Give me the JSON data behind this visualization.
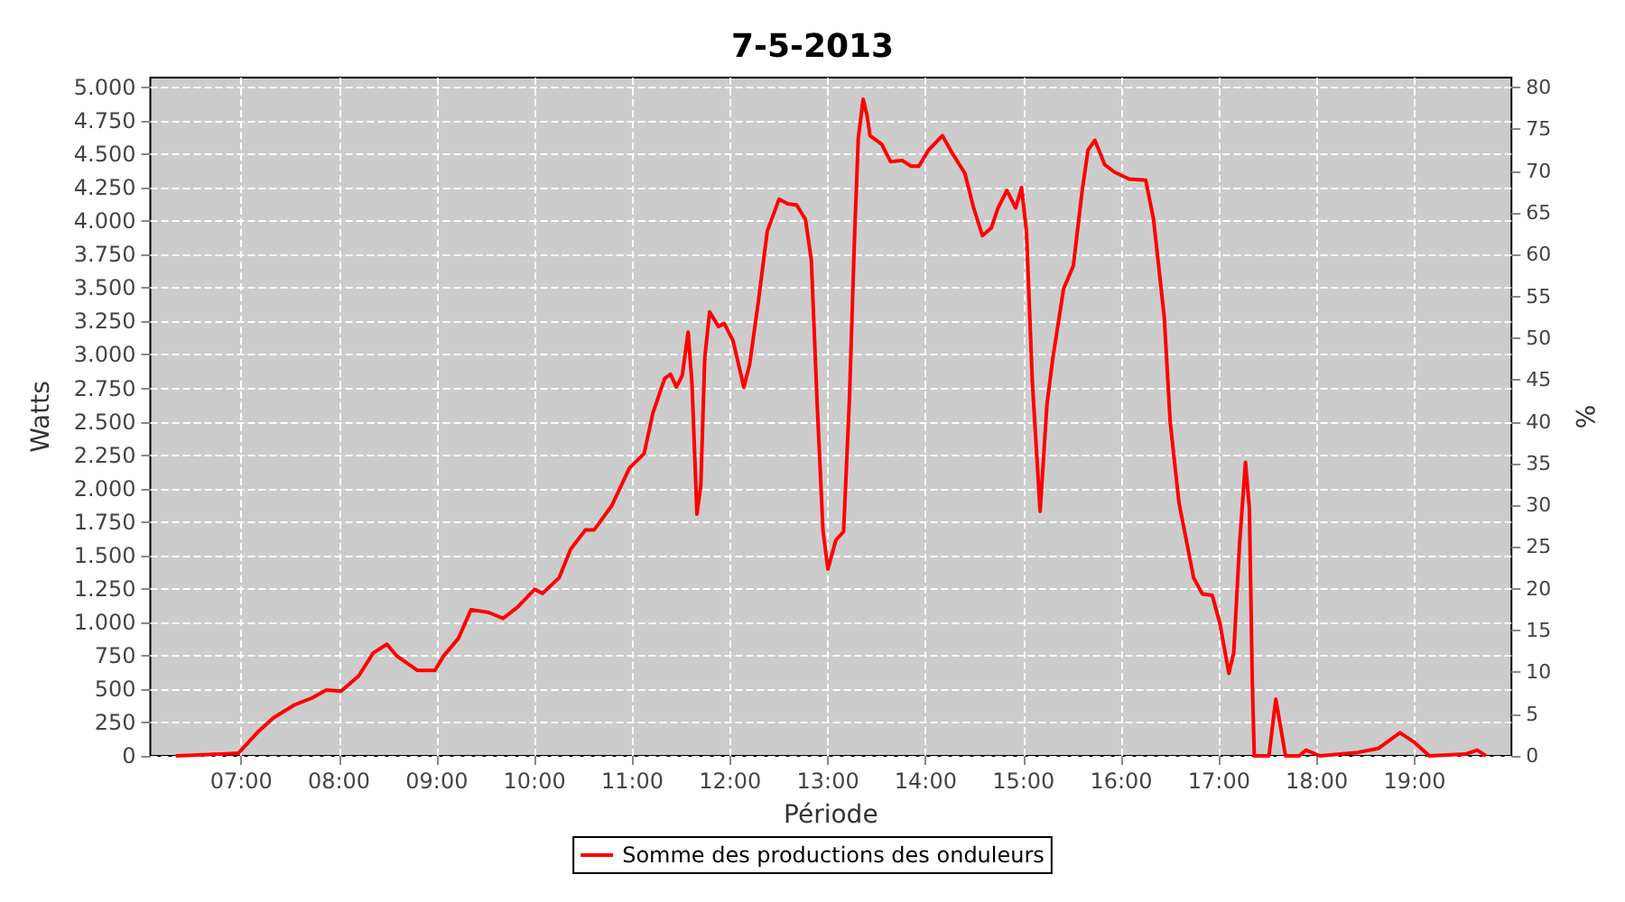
{
  "chart_data": {
    "type": "line",
    "title": "7-5-2013",
    "xlabel": "Période",
    "ylabel": "Watts",
    "y2label": "%",
    "xlim": [
      6.07,
      19.99
    ],
    "xticks": [
      {
        "value": 7,
        "label": "07:00"
      },
      {
        "value": 8,
        "label": "08:00"
      },
      {
        "value": 9,
        "label": "09:00"
      },
      {
        "value": 10,
        "label": "10:00"
      },
      {
        "value": 11,
        "label": "11:00"
      },
      {
        "value": 12,
        "label": "12:00"
      },
      {
        "value": 13,
        "label": "13:00"
      },
      {
        "value": 14,
        "label": "14:00"
      },
      {
        "value": 15,
        "label": "15:00"
      },
      {
        "value": 16,
        "label": "16:00"
      },
      {
        "value": 17,
        "label": "17:00"
      },
      {
        "value": 18,
        "label": "18:00"
      },
      {
        "value": 19,
        "label": "19:00"
      }
    ],
    "ylim": [
      0,
      5075
    ],
    "yticks": [
      0,
      250,
      500,
      750,
      {
        "value": 1000,
        "label": "1.000"
      },
      {
        "value": 1250,
        "label": "1.250"
      },
      {
        "value": 1500,
        "label": "1.500"
      },
      {
        "value": 1750,
        "label": "1.750"
      },
      {
        "value": 2000,
        "label": "2.000"
      },
      {
        "value": 2250,
        "label": "2.250"
      },
      {
        "value": 2500,
        "label": "2.500"
      },
      {
        "value": 2750,
        "label": "2.750"
      },
      {
        "value": 3000,
        "label": "3.000"
      },
      {
        "value": 3250,
        "label": "3.250"
      },
      {
        "value": 3500,
        "label": "3.500"
      },
      {
        "value": 3750,
        "label": "3.750"
      },
      {
        "value": 4000,
        "label": "4.000"
      },
      {
        "value": 4250,
        "label": "4.250"
      },
      {
        "value": 4500,
        "label": "4.500"
      },
      {
        "value": 4750,
        "label": "4.750"
      },
      {
        "value": 5000,
        "label": "5.000"
      }
    ],
    "y2lim": [
      0,
      81.2
    ],
    "y2ticks": [
      0,
      5,
      10,
      15,
      20,
      25,
      30,
      35,
      40,
      45,
      50,
      55,
      60,
      65,
      70,
      75,
      80
    ],
    "grid": true,
    "legend": "bottom",
    "marker": "none",
    "line_style": "solid",
    "series": [
      {
        "name": "Somme des productions des onduleurs",
        "color": "#ff0000",
        "x": [
          6.33,
          6.97,
          7.18,
          7.33,
          7.54,
          7.72,
          7.87,
          8.02,
          8.2,
          8.35,
          8.49,
          8.59,
          8.8,
          8.98,
          9.07,
          9.22,
          9.35,
          9.53,
          9.68,
          9.83,
          10.0,
          10.08,
          10.25,
          10.37,
          10.52,
          10.61,
          10.79,
          10.97,
          11.12,
          11.21,
          11.33,
          11.39,
          11.45,
          11.51,
          11.57,
          11.61,
          11.66,
          11.7,
          11.74,
          11.79,
          11.88,
          11.94,
          12.03,
          12.14,
          12.2,
          12.29,
          12.38,
          12.5,
          12.59,
          12.68,
          12.77,
          12.83,
          12.89,
          12.95,
          13.0,
          13.08,
          13.16,
          13.22,
          13.27,
          13.31,
          13.36,
          13.4,
          13.43,
          13.55,
          13.64,
          13.76,
          13.85,
          13.93,
          14.03,
          14.17,
          14.27,
          14.4,
          14.49,
          14.58,
          14.67,
          14.74,
          14.83,
          14.92,
          14.98,
          15.03,
          15.09,
          15.17,
          15.24,
          15.3,
          15.41,
          15.51,
          15.6,
          15.66,
          15.73,
          15.83,
          15.93,
          16.08,
          16.25,
          16.33,
          16.44,
          16.5,
          16.59,
          16.74,
          16.83,
          16.93,
          17.01,
          17.1,
          17.15,
          17.21,
          17.27,
          17.31,
          17.34,
          17.36,
          17.51,
          17.58,
          17.68,
          17.82,
          17.89,
          18.03,
          18.24,
          18.42,
          18.63,
          18.85,
          19.0,
          19.15,
          19.52,
          19.64,
          19.73
        ],
        "values": [
          0,
          20,
          186,
          285,
          380,
          432,
          493,
          484,
          597,
          770,
          835,
          748,
          640,
          640,
          748,
          878,
          1094,
          1073,
          1029,
          1116,
          1246,
          1215,
          1332,
          1548,
          1691,
          1691,
          1873,
          2154,
          2262,
          2565,
          2824,
          2855,
          2759,
          2846,
          3170,
          2781,
          1808,
          2024,
          2976,
          3322,
          3213,
          3235,
          3105,
          2759,
          2932,
          3408,
          3927,
          4165,
          4130,
          4122,
          4014,
          3711,
          2630,
          1678,
          1397,
          1613,
          1678,
          2673,
          3841,
          4619,
          4913,
          4792,
          4641,
          4576,
          4446,
          4455,
          4412,
          4412,
          4533,
          4641,
          4511,
          4360,
          4100,
          3892,
          3949,
          4100,
          4230,
          4100,
          4252,
          3927,
          2803,
          1829,
          2630,
          2976,
          3495,
          3668,
          4230,
          4533,
          4606,
          4424,
          4368,
          4316,
          4308,
          4014,
          3278,
          2500,
          1894,
          1332,
          1211,
          1202,
          986,
          618,
          770,
          1592,
          2197,
          1851,
          554,
          0,
          0,
          424,
          0,
          0,
          43,
          0,
          13,
          26,
          56,
          173,
          100,
          0,
          13,
          43,
          0
        ]
      }
    ]
  }
}
